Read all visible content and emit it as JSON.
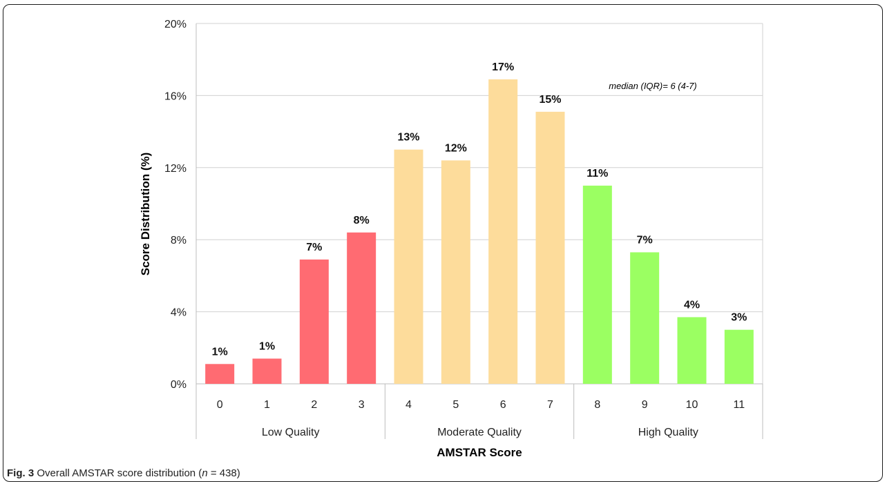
{
  "chart_data": {
    "type": "bar",
    "categories": [
      "0",
      "1",
      "2",
      "3",
      "4",
      "5",
      "6",
      "7",
      "8",
      "9",
      "10",
      "11"
    ],
    "values": [
      1.1,
      1.4,
      6.9,
      8.4,
      13.0,
      12.4,
      16.9,
      15.1,
      11.0,
      7.3,
      3.7,
      3.0
    ],
    "data_labels": [
      "1%",
      "1%",
      "7%",
      "8%",
      "13%",
      "12%",
      "17%",
      "15%",
      "11%",
      "7%",
      "4%",
      "3%"
    ],
    "groups": [
      {
        "name": "Low Quality",
        "categories": [
          "0",
          "1",
          "2",
          "3"
        ],
        "color": "#ff6b72"
      },
      {
        "name": "Moderate Quality",
        "categories": [
          "4",
          "5",
          "6",
          "7"
        ],
        "color": "#fddc9b"
      },
      {
        "name": "High Quality",
        "categories": [
          "8",
          "9",
          "10",
          "11"
        ],
        "color": "#9bff62"
      }
    ],
    "title": "",
    "xlabel": "AMSTAR Score",
    "ylabel": "Score Distribution (%)",
    "ylim": [
      0,
      20
    ],
    "yticks": [
      0,
      4,
      8,
      12,
      16,
      20
    ],
    "ytick_labels": [
      "0%",
      "4%",
      "8%",
      "12%",
      "16%",
      "20%"
    ],
    "grid": true,
    "annotation": "median (IQR)= 6 (4-7)"
  },
  "caption": {
    "label": "Fig. 3",
    "text_before": " Overall AMSTAR score distribution (",
    "n_symbol": "n",
    "text_after": " = 438)"
  }
}
